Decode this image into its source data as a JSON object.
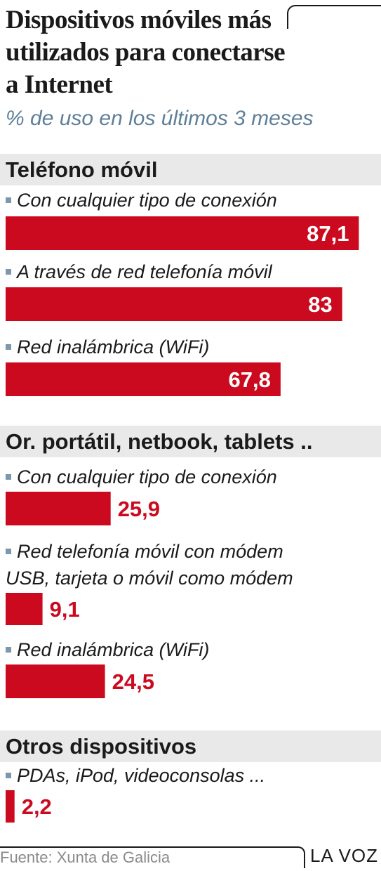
{
  "title": "Dispositivos móviles más utilizados para conectarse a Internet",
  "subtitle": "% de uso en los últimos 3 meses",
  "colors": {
    "bar": "#cc0a1f",
    "value_inside": "#ffffff",
    "value_outside": "#cc0a1f",
    "section_bg": "#e9e9e9",
    "bullet": "#7d97ab"
  },
  "chart_data": {
    "type": "bar",
    "orientation": "horizontal",
    "unit": "%",
    "xlim": [
      0,
      100
    ],
    "groups": [
      {
        "name": "Teléfono móvil",
        "items": [
          {
            "label": "Con cualquier tipo de conexión",
            "value": 87.1,
            "display": "87,1"
          },
          {
            "label": "A través de red telefonía móvil",
            "value": 83,
            "display": "83"
          },
          {
            "label": "Red inalámbrica (WiFi)",
            "value": 67.8,
            "display": "67,8"
          }
        ]
      },
      {
        "name": "Or. portátil, netbook, tablets ..",
        "items": [
          {
            "label": "Con cualquier tipo de conexión",
            "value": 25.9,
            "display": "25,9"
          },
          {
            "label": "Red telefonía móvil con módem USB, tarjeta o móvil como módem",
            "label_lines": [
              "Red telefonía móvil con módem",
              "USB, tarjeta o móvil como módem"
            ],
            "value": 9.1,
            "display": "9,1"
          },
          {
            "label": "Red inalámbrica (WiFi)",
            "value": 24.5,
            "display": "24,5"
          }
        ]
      },
      {
        "name": "Otros dispositivos",
        "items": [
          {
            "label": "PDAs, iPod, videoconsolas ...",
            "value": 2.2,
            "display": "2,2"
          }
        ]
      }
    ]
  },
  "footer": {
    "source": "Fuente: Xunta de Galicia",
    "brand": "LA VOZ"
  }
}
